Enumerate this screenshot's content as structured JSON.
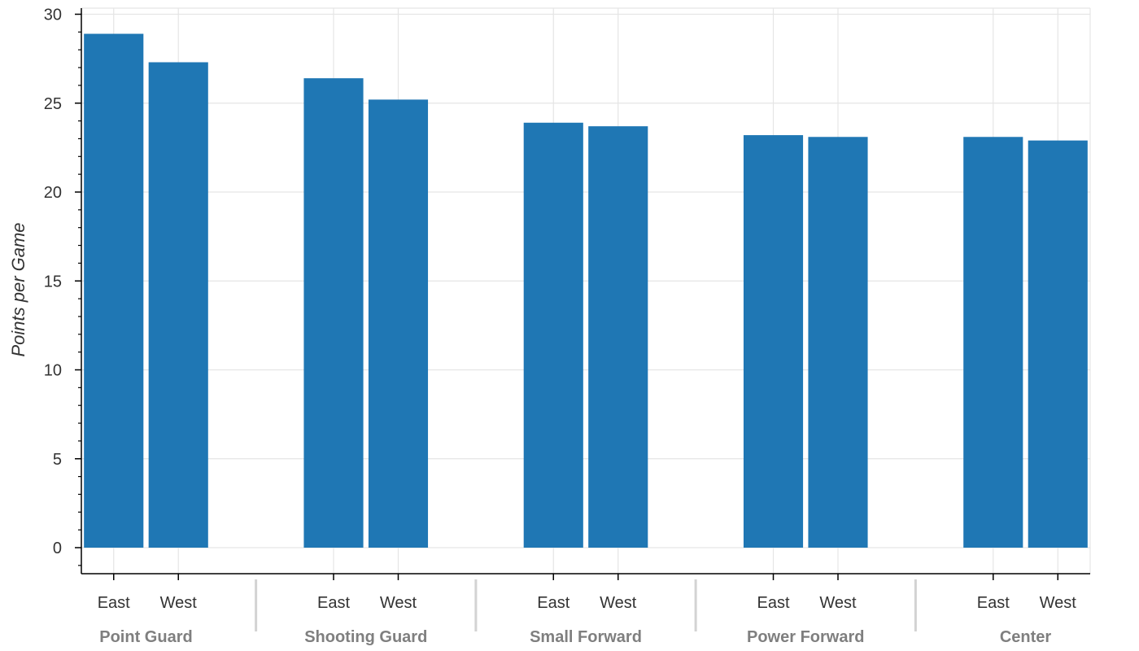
{
  "chart_data": {
    "type": "bar",
    "title": "",
    "xlabel": "",
    "ylabel": "Points per Game",
    "ylim": [
      -1.4,
      30.3
    ],
    "yticks": [
      "0",
      "5",
      "10",
      "15",
      "20",
      "25",
      "30"
    ],
    "grid": true,
    "groups": [
      "Point Guard",
      "Shooting Guard",
      "Small Forward",
      "Power Forward",
      "Center"
    ],
    "subcategories": [
      "East",
      "West"
    ],
    "values": [
      [
        28.9,
        27.3
      ],
      [
        26.4,
        25.2
      ],
      [
        23.9,
        23.7
      ],
      [
        23.2,
        23.1
      ],
      [
        23.1,
        22.9
      ]
    ],
    "colors": {
      "bar": "#1f77b4",
      "grid": "#e5e5e5",
      "axis": "#000000",
      "group_label": "#7f7f7f",
      "separator": "#d3d3d3"
    }
  }
}
